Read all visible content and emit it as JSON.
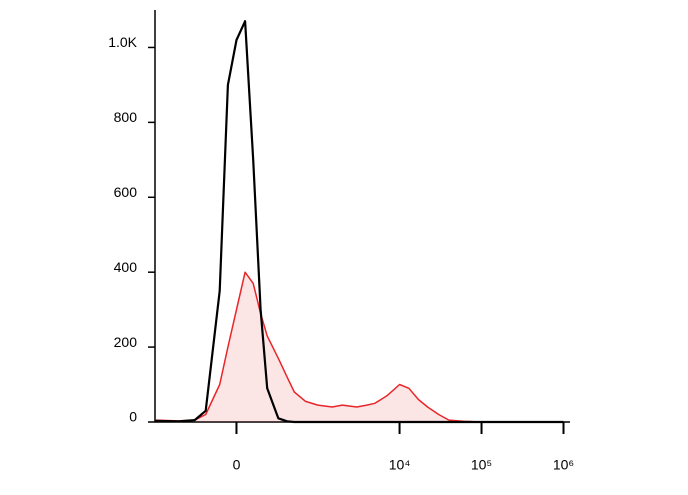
{
  "chart_data": {
    "type": "histogram-overlay",
    "xscale": "biexponential",
    "x": [
      -1000,
      -500,
      -300,
      -200,
      -100,
      -50,
      0,
      50,
      100,
      150,
      200,
      300,
      400,
      500,
      700,
      1000,
      1500,
      2000,
      3000,
      4000,
      5000,
      7000,
      10000,
      13000,
      17000,
      22000,
      30000,
      40000,
      60000,
      100000,
      300000,
      1000000
    ],
    "series": [
      {
        "color": "#e8262a",
        "fill": true,
        "values": [
          5,
          3,
          5,
          20,
          100,
          200,
          300,
          400,
          370,
          290,
          230,
          170,
          120,
          80,
          55,
          45,
          40,
          45,
          40,
          45,
          50,
          70,
          100,
          90,
          60,
          40,
          20,
          5,
          2,
          0,
          0,
          0
        ]
      },
      {
        "color": "#000000",
        "fill": false,
        "values": [
          3,
          2,
          5,
          30,
          350,
          900,
          1020,
          1070,
          700,
          300,
          90,
          10,
          2,
          0,
          0,
          0,
          0,
          0,
          0,
          0,
          0,
          0,
          0,
          0,
          0,
          0,
          0,
          0,
          0,
          0,
          0,
          0
        ]
      }
    ],
    "xlim": [
      -1000,
      1200000
    ],
    "ylim": [
      0,
      1100
    ],
    "xticks": [
      0,
      {
        "value": 10000,
        "label": "10⁴"
      },
      {
        "value": 100000,
        "label": "10⁵"
      },
      {
        "value": 1000000,
        "label": "10⁶"
      }
    ],
    "yticks": [
      0,
      200,
      400,
      600,
      800,
      {
        "value": 1000,
        "label": "1.0K"
      }
    ]
  }
}
